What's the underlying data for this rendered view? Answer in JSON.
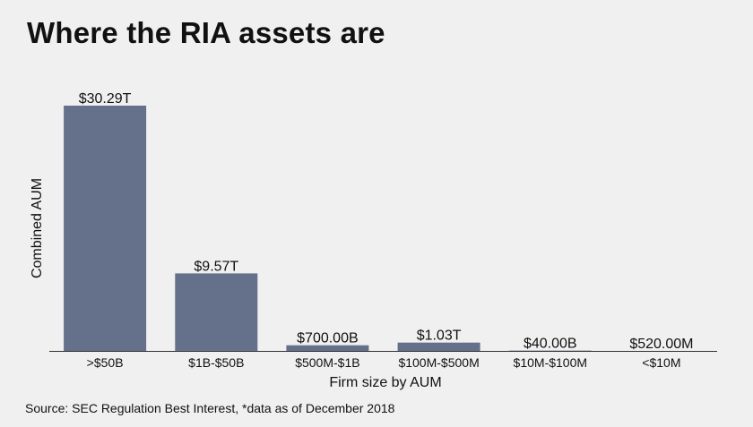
{
  "title": "Where the RIA assets are",
  "source": "Source: SEC Regulation Best Interest, *data as of December 2018",
  "chart_data": {
    "type": "bar",
    "categories": [
      ">$50B",
      "$1B-$50B",
      "$500M-$1B",
      "$100M-$500M",
      "$10M-$100M",
      "<$10M"
    ],
    "values": [
      30.29,
      9.57,
      0.7,
      1.03,
      0.04,
      0.00052
    ],
    "value_unit": "trillions of dollars",
    "data_labels": [
      "$30.29T",
      "$9.57T",
      "$700.00B",
      "$1.03T",
      "$40.00B",
      "$520.00M"
    ],
    "xlabel": "Firm size by AUM",
    "ylabel": "Combined AUM",
    "ylim": [
      0,
      30.29
    ],
    "grid": false,
    "bar_color": "#65718a"
  }
}
